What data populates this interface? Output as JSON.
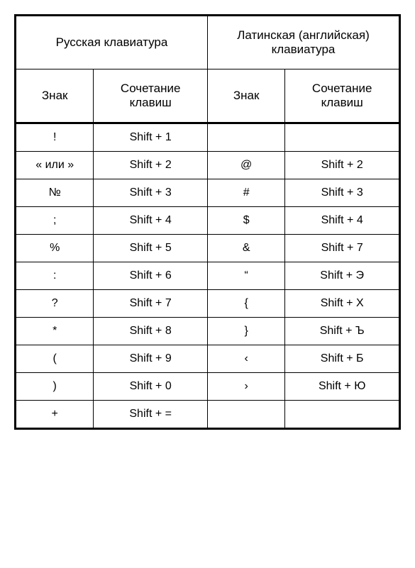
{
  "table": {
    "headers": {
      "russian": "Русская клавиатура",
      "latin": "Латинская (английская) клавиатура",
      "sign": "Знак",
      "combo": "Сочетание клавиш"
    },
    "rows": [
      {
        "r_sign": "!",
        "r_combo": "Shift + 1",
        "l_sign": "",
        "l_combo": ""
      },
      {
        "r_sign": "« или »",
        "r_combo": "Shift + 2",
        "l_sign": "@",
        "l_combo": "Shift + 2"
      },
      {
        "r_sign": "№",
        "r_combo": "Shift + 3",
        "l_sign": "#",
        "l_combo": "Shift + 3"
      },
      {
        "r_sign": ";",
        "r_combo": "Shift + 4",
        "l_sign": "$",
        "l_combo": "Shift + 4"
      },
      {
        "r_sign": "%",
        "r_combo": "Shift + 5",
        "l_sign": "&",
        "l_combo": "Shift + 7"
      },
      {
        "r_sign": ":",
        "r_combo": "Shift + 6",
        "l_sign": "“",
        "l_combo": "Shift + Э"
      },
      {
        "r_sign": "?",
        "r_combo": "Shift + 7",
        "l_sign": "{",
        "l_combo": "Shift + Х"
      },
      {
        "r_sign": "*",
        "r_combo": "Shift + 8",
        "l_sign": "}",
        "l_combo": "Shift + Ъ"
      },
      {
        "r_sign": "(",
        "r_combo": "Shift + 9",
        "l_sign": "‹",
        "l_combo": "Shift + Б"
      },
      {
        "r_sign": ")",
        "r_combo": "Shift + 0",
        "l_sign": "›",
        "l_combo": "Shift + Ю"
      },
      {
        "r_sign": "+",
        "r_combo": "Shift + =",
        "l_sign": "",
        "l_combo": ""
      }
    ]
  }
}
